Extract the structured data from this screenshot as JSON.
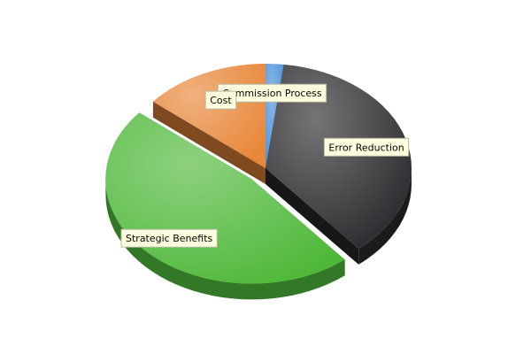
{
  "chart_data": {
    "type": "pie",
    "title": "",
    "slices": [
      {
        "label": "Commission Process",
        "value": 2,
        "color": "#4a90d9",
        "exploded": false
      },
      {
        "label": "Error Reduction",
        "value": 37,
        "color": "#2a2a2e",
        "exploded": false
      },
      {
        "label": "Strategic Benefits",
        "value": 47,
        "color": "#4fb83a",
        "exploded": true
      },
      {
        "label": "Cost",
        "value": 14,
        "color": "#e8873a",
        "exploded": false
      }
    ],
    "style": "3d",
    "label_background": "#ffffe0",
    "legend": "none"
  }
}
